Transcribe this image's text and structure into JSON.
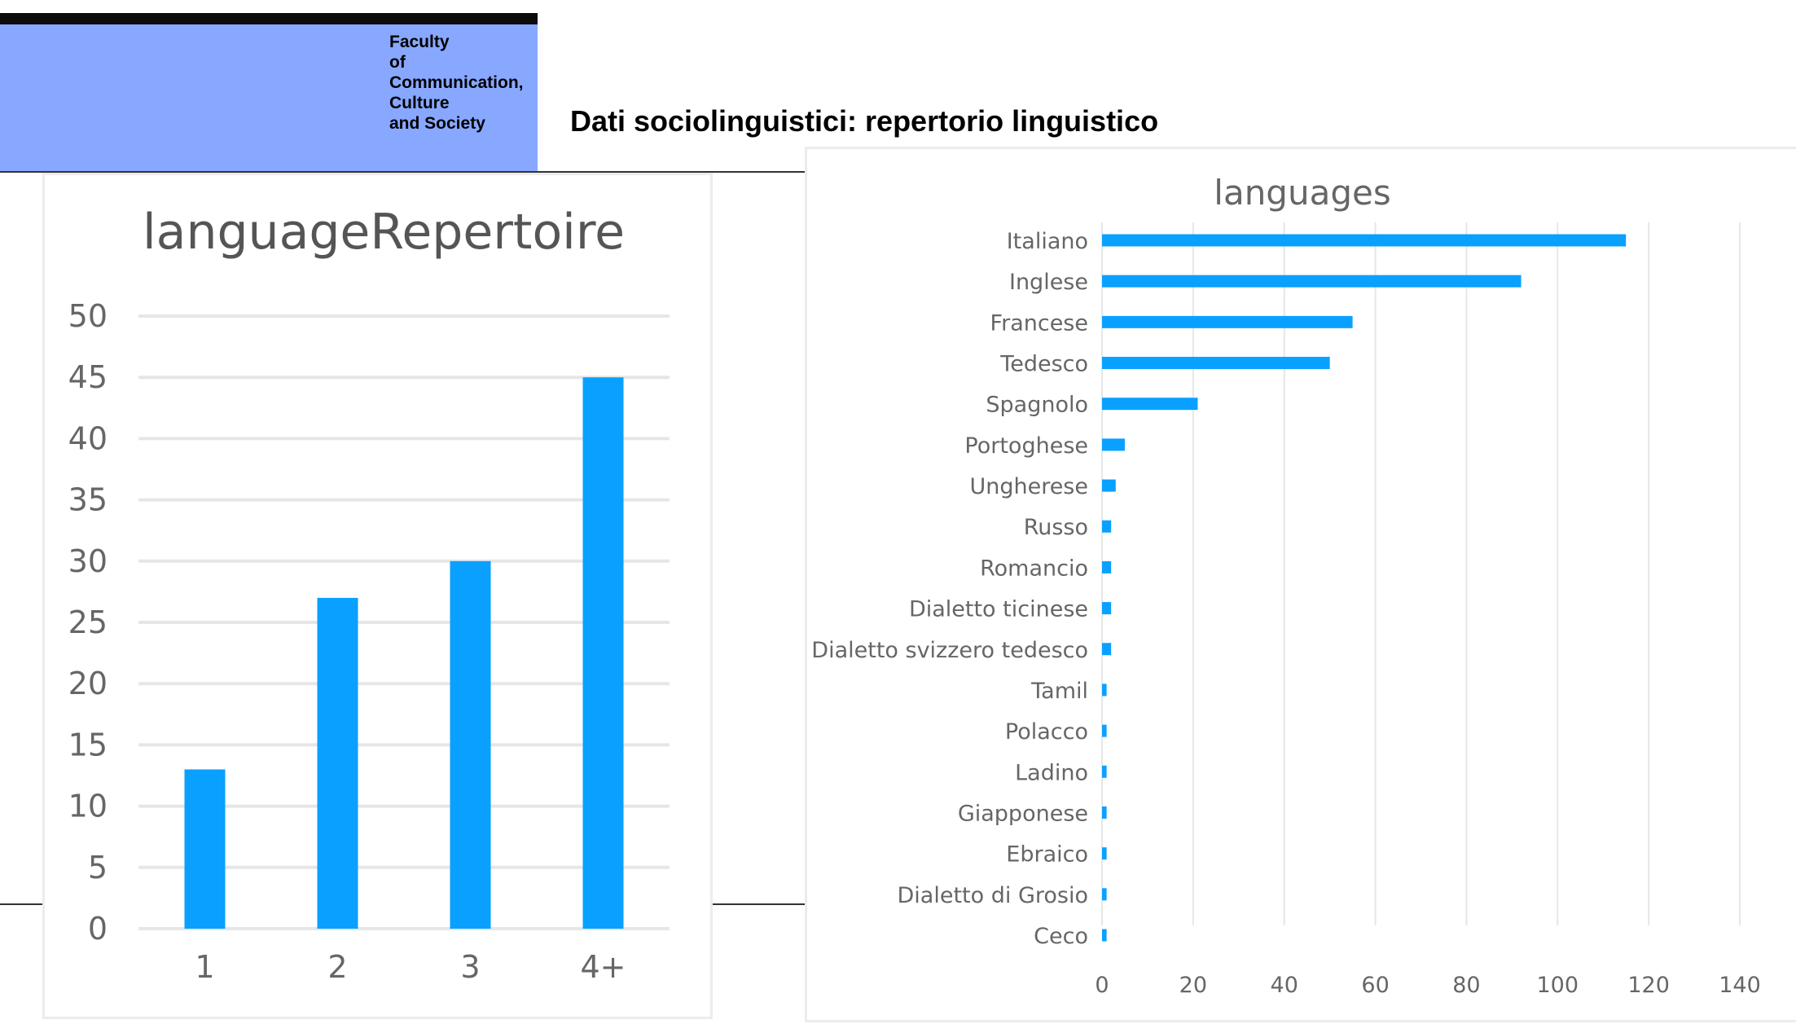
{
  "header": {
    "faculty_lines": [
      "Faculty",
      "of",
      "Communication,",
      "Culture",
      "and Society"
    ]
  },
  "slide": {
    "title": "Dati sociolinguistici: repertorio linguistico"
  },
  "colors": {
    "header_background": "#88a8ff",
    "bar": "#0aa0ff",
    "grid": "#e6e6e6"
  },
  "chart_data": [
    {
      "type": "bar",
      "title": "languageRepertoire",
      "categories": [
        "1",
        "2",
        "3",
        "4+"
      ],
      "values": [
        13,
        27,
        30,
        45
      ],
      "xlabel": "",
      "ylabel": "",
      "ylim": [
        0,
        50
      ],
      "yticks": [
        0,
        5,
        10,
        15,
        20,
        25,
        30,
        35,
        40,
        45,
        50
      ],
      "grid": true,
      "orientation": "vertical"
    },
    {
      "type": "bar",
      "title": "languages",
      "orientation": "horizontal",
      "categories": [
        "Italiano",
        "Inglese",
        "Francese",
        "Tedesco",
        "Spagnolo",
        "Portoghese",
        "Ungherese",
        "Russo",
        "Romancio",
        "Dialetto ticinese",
        "Dialetto svizzero tedesco",
        "Tamil",
        "Polacco",
        "Ladino",
        "Giapponese",
        "Ebraico",
        "Dialetto di Grosio",
        "Ceco"
      ],
      "values": [
        115,
        92,
        55,
        50,
        21,
        5,
        3,
        2,
        2,
        2,
        2,
        1,
        1,
        1,
        1,
        1,
        1,
        1
      ],
      "xlabel": "",
      "ylabel": "",
      "xlim": [
        0,
        140
      ],
      "xticks": [
        0,
        20,
        40,
        60,
        80,
        100,
        120,
        140
      ],
      "grid": true
    }
  ]
}
